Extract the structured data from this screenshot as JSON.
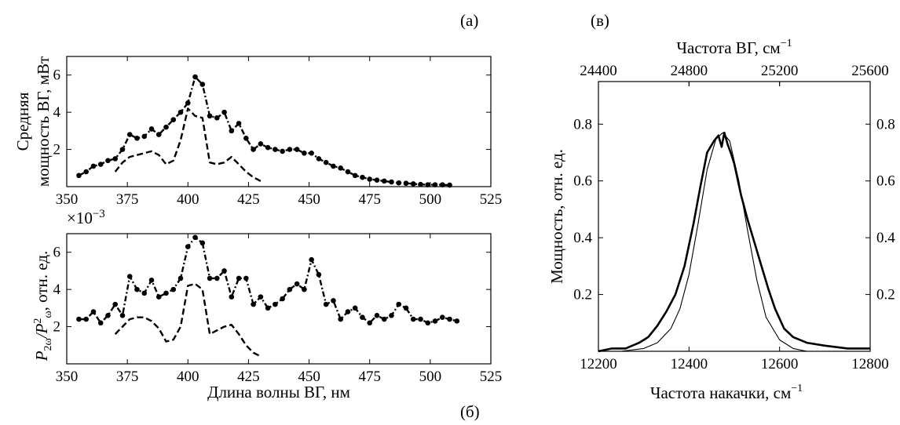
{
  "chart_data": [
    {
      "panel_label": "(а)",
      "type": "line",
      "ylabel_line1": "Средняя",
      "ylabel_line2": "мощность ВГ, мВт",
      "xlim": [
        350,
        525
      ],
      "ylim": [
        0,
        7
      ],
      "xticks": [
        "350",
        "375",
        "400",
        "425",
        "450",
        "475",
        "500",
        "525"
      ],
      "yticks": [
        "2",
        "4",
        "6"
      ],
      "series": [
        {
          "style": "dash-dot",
          "x": [
            355,
            358,
            361,
            364,
            367,
            370,
            373,
            376,
            379,
            382,
            385,
            388,
            391,
            394,
            397,
            400,
            403,
            406,
            409,
            412,
            415,
            418,
            421,
            424,
            427,
            430,
            433,
            436,
            439,
            442,
            445,
            448,
            451,
            454,
            457,
            460,
            463,
            466,
            469,
            472,
            475,
            478,
            481,
            484,
            487,
            490,
            493,
            496,
            499,
            502,
            505,
            508
          ],
          "y": [
            0.6,
            0.8,
            1.1,
            1.2,
            1.4,
            1.5,
            2.0,
            2.8,
            2.6,
            2.7,
            3.1,
            2.8,
            3.2,
            3.6,
            4.0,
            4.5,
            5.9,
            5.5,
            3.8,
            3.7,
            4.0,
            3.0,
            3.4,
            2.6,
            2.0,
            2.3,
            2.1,
            2.0,
            1.9,
            2.0,
            2.0,
            1.8,
            1.8,
            1.5,
            1.3,
            1.1,
            1.0,
            0.8,
            0.6,
            0.5,
            0.4,
            0.35,
            0.3,
            0.25,
            0.2,
            0.18,
            0.15,
            0.12,
            0.1,
            0.1,
            0.1,
            0.08
          ]
        },
        {
          "style": "dashed",
          "x": [
            370,
            373,
            376,
            379,
            382,
            385,
            388,
            391,
            394,
            397,
            400,
            403,
            406,
            409,
            412,
            415,
            418,
            421,
            424,
            427,
            430
          ],
          "y": [
            0.8,
            1.3,
            1.6,
            1.7,
            1.8,
            1.9,
            1.7,
            1.2,
            1.4,
            2.5,
            4.2,
            3.8,
            3.7,
            1.3,
            1.2,
            1.3,
            1.6,
            1.2,
            0.8,
            0.5,
            0.3
          ]
        }
      ]
    },
    {
      "panel_label": "(б)",
      "type": "line",
      "ylabel_main": "P",
      "ylabel_sub1": "2ω",
      "ylabel_sep": "/P",
      "ylabel_sup2": "2",
      "ylabel_sub2": "ω",
      "ylabel_tail": ", отн. ед.",
      "xlabel": "Длина волны ВГ, нм",
      "scale_base": "×10",
      "scale_exp": "−3",
      "xlim": [
        350,
        525
      ],
      "ylim": [
        0,
        7
      ],
      "xticks": [
        "350",
        "375",
        "400",
        "425",
        "450",
        "475",
        "500",
        "525"
      ],
      "yticks": [
        "2",
        "4",
        "6"
      ],
      "series": [
        {
          "style": "dash-dot",
          "x": [
            355,
            358,
            361,
            364,
            367,
            370,
            373,
            376,
            379,
            382,
            385,
            388,
            391,
            394,
            397,
            400,
            403,
            406,
            409,
            412,
            415,
            418,
            421,
            424,
            427,
            430,
            433,
            436,
            439,
            442,
            445,
            448,
            451,
            454,
            457,
            460,
            463,
            466,
            469,
            472,
            475,
            478,
            481,
            484,
            487,
            490,
            493,
            496,
            499,
            502,
            505,
            508,
            511
          ],
          "y": [
            2.4,
            2.4,
            2.8,
            2.2,
            2.6,
            3.2,
            2.6,
            4.7,
            4.0,
            3.8,
            4.5,
            3.6,
            3.8,
            4.0,
            4.6,
            6.3,
            6.8,
            6.5,
            4.6,
            4.6,
            5.0,
            3.6,
            4.6,
            4.6,
            3.2,
            3.6,
            3.0,
            3.2,
            3.5,
            4.0,
            4.3,
            4.0,
            5.6,
            4.8,
            3.2,
            3.4,
            2.4,
            2.8,
            3.0,
            2.5,
            2.2,
            2.6,
            2.4,
            2.6,
            3.2,
            3.0,
            2.4,
            2.4,
            2.2,
            2.3,
            2.5,
            2.4,
            2.3
          ]
        },
        {
          "style": "dashed",
          "x": [
            370,
            373,
            376,
            379,
            382,
            385,
            388,
            391,
            394,
            397,
            400,
            403,
            406,
            409,
            412,
            415,
            418,
            421,
            424,
            427,
            430
          ],
          "y": [
            1.6,
            2.0,
            2.4,
            2.5,
            2.5,
            2.3,
            1.9,
            1.2,
            1.3,
            2.0,
            4.2,
            4.3,
            4.0,
            1.6,
            1.8,
            2.0,
            2.1,
            1.6,
            1.0,
            0.6,
            0.4
          ]
        }
      ]
    },
    {
      "panel_label": "(в)",
      "type": "line",
      "ylabel": "Мощность, отн. ед.",
      "xlabel": "Частота накачки, см",
      "xlabel_sup": "−1",
      "top_xlabel": "Частота ВГ, см",
      "top_xlabel_sup": "−1",
      "xlim": [
        12200,
        12800
      ],
      "ylim": [
        0,
        0.95
      ],
      "xticks": [
        "12200",
        "12400",
        "12600",
        "12800"
      ],
      "top_xticks": [
        "24400",
        "24800",
        "25200",
        "25600"
      ],
      "yticks": [
        "0.2",
        "0.4",
        "0.6",
        "0.8"
      ],
      "series": [
        {
          "style": "thin",
          "x": [
            12200,
            12250,
            12300,
            12330,
            12360,
            12380,
            12400,
            12420,
            12440,
            12460,
            12475,
            12490,
            12510,
            12530,
            12550,
            12570,
            12600,
            12630,
            12660,
            12700,
            12750,
            12800
          ],
          "y": [
            0.0,
            0.0,
            0.01,
            0.03,
            0.08,
            0.15,
            0.27,
            0.45,
            0.64,
            0.75,
            0.77,
            0.74,
            0.6,
            0.42,
            0.25,
            0.12,
            0.04,
            0.01,
            0.0,
            0.0,
            0.0,
            0.0
          ]
        },
        {
          "style": "thick",
          "x": [
            12200,
            12230,
            12260,
            12290,
            12310,
            12330,
            12350,
            12370,
            12390,
            12410,
            12425,
            12440,
            12455,
            12465,
            12472,
            12478,
            12485,
            12492,
            12500,
            12515,
            12530,
            12545,
            12560,
            12575,
            12590,
            12610,
            12630,
            12660,
            12700,
            12750,
            12800
          ],
          "y": [
            0.0,
            0.01,
            0.01,
            0.03,
            0.05,
            0.09,
            0.14,
            0.2,
            0.3,
            0.45,
            0.58,
            0.7,
            0.74,
            0.76,
            0.72,
            0.77,
            0.73,
            0.7,
            0.66,
            0.55,
            0.46,
            0.38,
            0.3,
            0.22,
            0.15,
            0.08,
            0.05,
            0.03,
            0.02,
            0.01,
            0.01
          ]
        }
      ]
    }
  ]
}
